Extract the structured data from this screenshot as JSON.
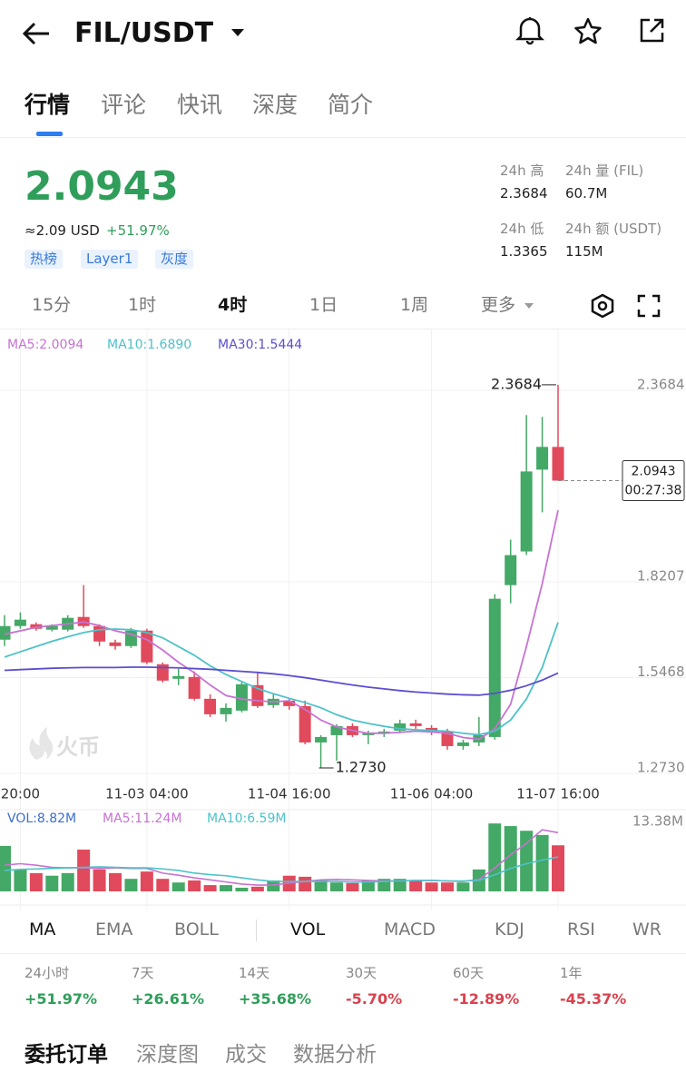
{
  "header": {
    "title": "FIL/USDT"
  },
  "tabs": [
    "行情",
    "评论",
    "快讯",
    "深度",
    "简介"
  ],
  "price": {
    "last": "2.0943",
    "usd": "≈2.09 USD",
    "change": "+51.97%",
    "tags": [
      "热榜",
      "Layer1",
      "灰度"
    ]
  },
  "stats": [
    {
      "label": "24h 高",
      "value": "2.3684"
    },
    {
      "label": "24h 量 (FIL)",
      "value": "60.7M"
    },
    {
      "label": "24h 低",
      "value": "1.3365"
    },
    {
      "label": "24h 额 (USDT)",
      "value": "115M"
    }
  ],
  "intervals": [
    "15分",
    "1时",
    "4时",
    "1日",
    "1周",
    "更多"
  ],
  "indicators": [
    "MA",
    "EMA",
    "BOLL",
    "VOL",
    "MACD",
    "KDJ",
    "RSI",
    "WR"
  ],
  "performance": [
    {
      "label": "24小时",
      "value": "+51.97%",
      "color": "#2f9e5a"
    },
    {
      "label": "7天",
      "value": "+26.61%",
      "color": "#2f9e5a"
    },
    {
      "label": "14天",
      "value": "+35.68%",
      "color": "#2f9e5a"
    },
    {
      "label": "30天",
      "value": "-5.70%",
      "color": "#d9424f"
    },
    {
      "label": "60天",
      "value": "-12.89%",
      "color": "#d9424f"
    },
    {
      "label": "1年",
      "value": "-45.37%",
      "color": "#d9424f"
    }
  ],
  "bottom_tabs": [
    "委托订单",
    "深度图",
    "成交",
    "数据分析"
  ],
  "chart_data": {
    "type": "candlestick",
    "watermark": "火币",
    "up_color": "#44a866",
    "down_color": "#e04a5c",
    "categories": [
      null,
      "20:00",
      null,
      null,
      null,
      null,
      null,
      null,
      null,
      "11-03 04:00",
      null,
      null,
      null,
      null,
      null,
      null,
      null,
      null,
      "11-04 16:00",
      null,
      null,
      null,
      null,
      null,
      null,
      null,
      null,
      "11-06 04:00",
      null,
      null,
      null,
      null,
      null,
      null,
      null,
      "11-07 16:00"
    ],
    "open": [
      1.6396,
      1.6786,
      1.6838,
      1.6682,
      1.6682,
      1.7046,
      1.6786,
      1.6318,
      1.6214,
      1.6656,
      1.5694,
      1.5278,
      1.533,
      1.4706,
      1.4264,
      1.4368,
      1.5096,
      1.4524,
      1.4654,
      1.4498,
      1.3458,
      1.3666,
      1.3926,
      1.3666,
      1.3718,
      1.3796,
      1.4004,
      1.3874,
      1.377,
      1.3354,
      1.3458,
      1.3614,
      1.7956,
      1.8918,
      2.1258,
      2.1908
    ],
    "high": [
      1.7098,
      1.7176,
      1.689,
      1.6838,
      1.7098,
      1.7956,
      1.6838,
      1.6396,
      1.6734,
      1.6708,
      1.5746,
      1.5564,
      1.5486,
      1.4836,
      1.4576,
      1.5174,
      1.5486,
      1.4836,
      1.4706,
      1.4654,
      1.3666,
      1.3978,
      1.4004,
      1.3796,
      1.3848,
      1.4108,
      1.4108,
      1.3952,
      1.3848,
      1.3536,
      1.4186,
      1.7696,
      1.9256,
      2.2818,
      2.2766,
      2.3684
    ],
    "low": [
      1.6214,
      1.6708,
      1.6656,
      1.663,
      1.663,
      1.6734,
      1.6214,
      1.611,
      1.6162,
      1.5694,
      1.5174,
      1.5096,
      1.4654,
      1.4186,
      1.4056,
      1.4316,
      1.4446,
      1.4446,
      1.4394,
      1.3406,
      1.273,
      1.2938,
      1.3614,
      1.3406,
      1.3614,
      1.3718,
      1.3848,
      1.3666,
      1.325,
      1.325,
      1.3354,
      1.3536,
      1.7436,
      1.8814,
      2.0036,
      2.0943
    ],
    "close": [
      1.6786,
      1.6968,
      1.6708,
      1.6786,
      1.702,
      1.6786,
      1.6344,
      1.6214,
      1.6656,
      1.5746,
      1.5226,
      1.5356,
      1.4706,
      1.4264,
      1.4446,
      1.5122,
      1.4498,
      1.4706,
      1.4498,
      1.3458,
      1.3614,
      1.3926,
      1.3666,
      1.3718,
      1.377,
      1.4004,
      1.3926,
      1.377,
      1.3354,
      1.3458,
      1.3666,
      1.7566,
      1.8814,
      2.1206,
      2.1908,
      2.0943
    ],
    "ma": [
      {
        "label": "MA5:2.0094",
        "color": "#c772d2",
        "values": [
          1.655,
          1.665,
          1.675,
          1.68,
          1.685,
          1.69,
          1.68,
          1.665,
          1.655,
          1.64,
          1.61,
          1.575,
          1.545,
          1.51,
          1.48,
          1.47,
          1.465,
          1.462,
          1.465,
          1.44,
          1.41,
          1.39,
          1.38,
          1.372,
          1.372,
          1.375,
          1.378,
          1.376,
          1.372,
          1.36,
          1.355,
          1.385,
          1.455,
          1.62,
          1.8,
          2.0094
        ]
      },
      {
        "label": "MA10:1.6890",
        "color": "#4cc2c8",
        "values": [
          1.59,
          1.605,
          1.62,
          1.635,
          1.648,
          1.66,
          1.668,
          1.67,
          1.668,
          1.66,
          1.645,
          1.62,
          1.595,
          1.565,
          1.54,
          1.52,
          1.5,
          1.485,
          1.472,
          1.46,
          1.445,
          1.425,
          1.41,
          1.4,
          1.392,
          1.385,
          1.382,
          1.38,
          1.378,
          1.372,
          1.368,
          1.378,
          1.41,
          1.47,
          1.56,
          1.689
        ]
      },
      {
        "label": "MA30:1.5444",
        "color": "#5b4ed0",
        "values": [
          1.552,
          1.554,
          1.556,
          1.558,
          1.559,
          1.56,
          1.56,
          1.56,
          1.561,
          1.561,
          1.56,
          1.559,
          1.557,
          1.555,
          1.552,
          1.549,
          1.546,
          1.542,
          1.537,
          1.531,
          1.524,
          1.517,
          1.51,
          1.504,
          1.499,
          1.494,
          1.49,
          1.487,
          1.484,
          1.482,
          1.481,
          1.486,
          1.495,
          1.508,
          1.524,
          1.5444
        ]
      }
    ],
    "ylim": [
      1.24,
      2.46
    ],
    "yticks": [
      {
        "value": 1.273,
        "label": "1.2730"
      },
      1.5468,
      1.8207,
      2.3684
    ],
    "max_label": "2.3684",
    "min_label": "1.2730",
    "last_price": 2.0943,
    "countdown": "00:27:38",
    "volume_label": "VOL:8.82M",
    "volume": [
      8.7,
      4.2,
      3.5,
      3.0,
      3.5,
      8.0,
      4.2,
      3.5,
      2.4,
      3.8,
      2.4,
      1.7,
      2.1,
      1.2,
      1.2,
      0.7,
      0.9,
      2.1,
      3.0,
      2.8,
      2.1,
      1.7,
      1.6,
      2.1,
      2.4,
      2.4,
      2.1,
      1.7,
      1.7,
      1.7,
      4.2,
      13.0,
      12.5,
      11.6,
      10.8,
      8.82
    ],
    "vol_ma": [
      {
        "label": "MA5:11.24M",
        "color": "#c772d2",
        "values": [
          5.0,
          5.3,
          5.0,
          4.6,
          4.5,
          4.5,
          4.4,
          4.5,
          4.4,
          4.4,
          3.5,
          3.1,
          2.6,
          2.2,
          1.8,
          1.4,
          1.2,
          1.2,
          1.6,
          1.9,
          2.2,
          2.3,
          2.2,
          2.1,
          2.0,
          2.0,
          2.1,
          2.1,
          2.0,
          1.9,
          2.3,
          4.5,
          7.0,
          9.2,
          11.8,
          11.24
        ]
      },
      {
        "label": "MA10:6.59M",
        "color": "#4cc2c8",
        "values": [
          4.0,
          4.2,
          4.3,
          4.4,
          4.5,
          4.6,
          4.7,
          4.6,
          4.5,
          4.5,
          4.3,
          4.0,
          3.5,
          3.2,
          3.0,
          2.6,
          2.2,
          1.9,
          1.9,
          1.9,
          1.9,
          1.9,
          1.8,
          1.8,
          1.9,
          2.0,
          2.1,
          2.1,
          2.0,
          2.0,
          2.1,
          3.2,
          4.4,
          5.3,
          6.0,
          6.59
        ]
      }
    ],
    "y2lim": [
      0,
      13.38
    ],
    "y2ticks": [
      {
        "value": 13.38,
        "label": "13.38M"
      }
    ]
  }
}
